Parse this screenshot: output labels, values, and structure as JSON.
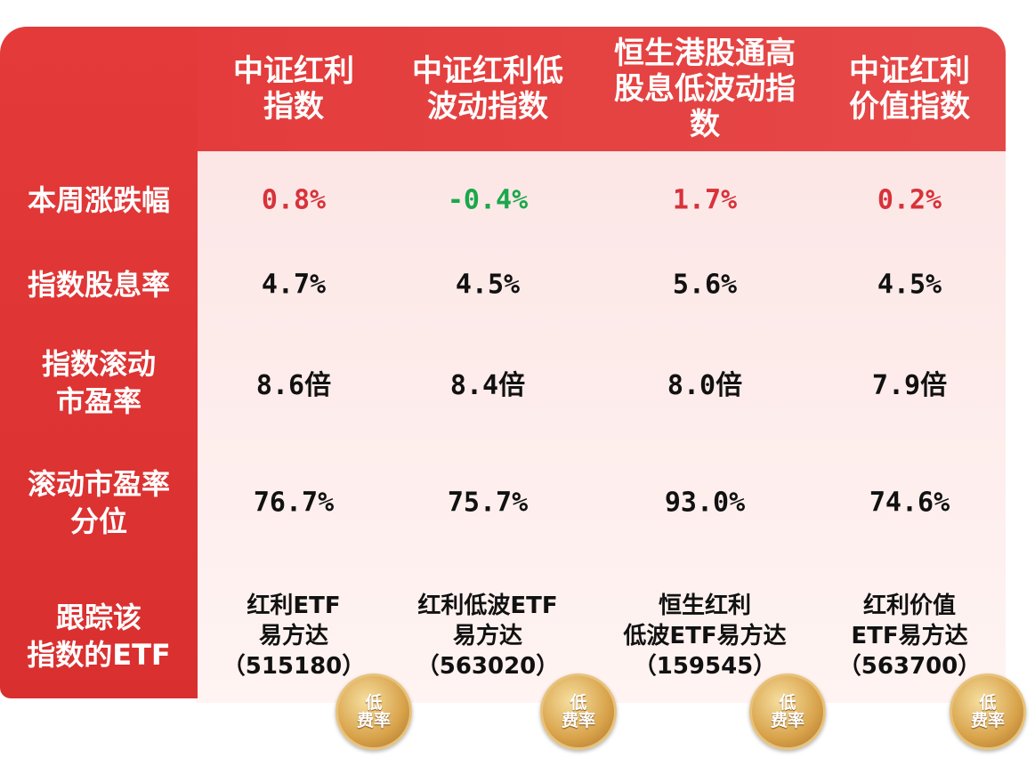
{
  "table": {
    "header": [
      "中证红利\n指数",
      "中证红利低\n波动指数",
      "恒生港股通高\n股息低波动指\n数",
      "中证红利\n价值指数"
    ],
    "rows": [
      {
        "label": "本周涨跌幅",
        "cells": [
          "0.8%",
          "-0.4%",
          "1.7%",
          "0.2%"
        ]
      },
      {
        "label": "指数股息率",
        "cells": [
          "4.7%",
          "4.5%",
          "5.6%",
          "4.5%"
        ]
      },
      {
        "label": "指数滚动\n市盈率",
        "cells": [
          "8.6倍",
          "8.4倍",
          "8.0倍",
          "7.9倍"
        ]
      },
      {
        "label": "滚动市盈率\n分位",
        "cells": [
          "76.7%",
          "75.7%",
          "93.0%",
          "74.6%"
        ]
      },
      {
        "label": "跟踪该\n指数的ETF",
        "cells": [
          "红利ETF\n易方达\n（515180）",
          "红利低波ETF\n易方达\n（563020）",
          "恒生红利\n低波ETF易方达\n（159545）",
          "红利价值\nETF易方达\n（563700）"
        ]
      }
    ],
    "badges": [
      "低\n费率",
      "低\n费率",
      "低\n费率",
      "低\n费率"
    ]
  }
}
